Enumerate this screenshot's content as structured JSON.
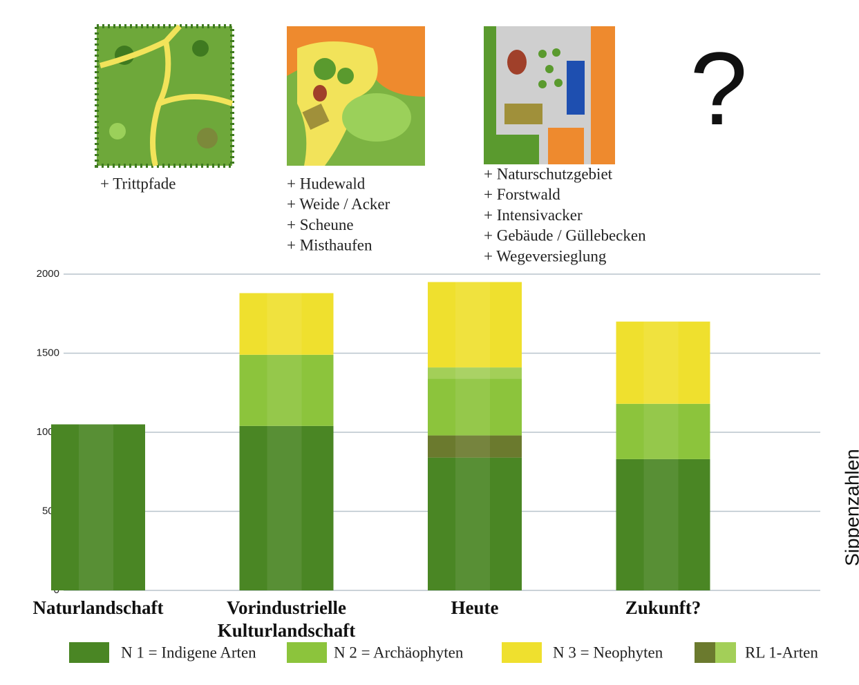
{
  "panels": [
    {
      "items": [
        "+ Trittpfade"
      ]
    },
    {
      "items": [
        "+ Hudewald",
        "+ Weide / Acker",
        "+ Scheune",
        "+ Misthaufen"
      ]
    },
    {
      "items": [
        "+ Naturschutzgebiet",
        "+ Forstwald",
        "+ Intensivacker",
        "+ Gebäude / Güllebecken",
        "+ Wegeversieglung"
      ]
    }
  ],
  "question": "?",
  "chart_data": {
    "type": "stacked_bar",
    "y_label": "Sippenzahlen",
    "categories": [
      "Naturlandschaft",
      "Vorindustrielle Kulturlandschaft",
      "Heute",
      "Zukunft?"
    ],
    "series": [
      {
        "name": "N 1 = Indigene Arten",
        "color": "#4a8624",
        "values": [
          1050,
          1040,
          840,
          830
        ]
      },
      {
        "name": "N 2 = Archäophyten",
        "color": "#8cc43c",
        "values": [
          0,
          450,
          360,
          350
        ]
      },
      {
        "name": "N 3 = Neophyten",
        "color": "#efe02e",
        "values": [
          0,
          390,
          540,
          520
        ]
      },
      {
        "name": "RL 1-Arten",
        "colors": [
          "#6b7a2e",
          "#a3cf58"
        ],
        "values": [
          [
            0,
            0
          ],
          [
            0,
            0
          ],
          [
            140,
            70
          ],
          [
            0,
            0
          ]
        ]
      }
    ],
    "ylim": [
      0,
      2000
    ],
    "yticks": [
      0,
      500,
      1000,
      1500,
      2000
    ],
    "grid": true
  }
}
